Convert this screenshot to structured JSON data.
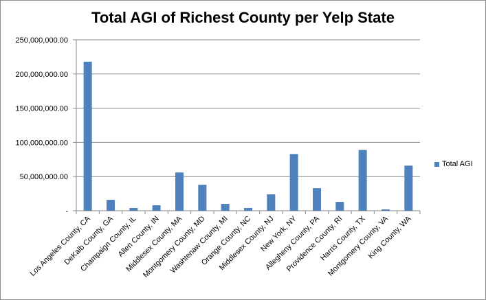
{
  "chart_data": {
    "type": "bar",
    "title": "Total AGI of Richest County per Yelp State",
    "xlabel": "",
    "ylabel": "",
    "ylim": [
      0,
      250000000
    ],
    "yticks": [
      {
        "value": 0,
        "label": "-"
      },
      {
        "value": 50000000,
        "label": "50,000,000.00"
      },
      {
        "value": 100000000,
        "label": "100,000,000.00"
      },
      {
        "value": 150000000,
        "label": "150,000,000.00"
      },
      {
        "value": 200000000,
        "label": "200,000,000.00"
      },
      {
        "value": 250000000,
        "label": "250,000,000.00"
      }
    ],
    "grid": true,
    "legend_position": "right",
    "categories": [
      "Los Angeles County, CA",
      "DeKalb County, GA",
      "Champaign County, IL",
      "Allen County, IN",
      "Middlesex County, MA",
      "Montgomery County, MD",
      "Washtenaw County, MI",
      "Orange County, NC",
      "Middlesex County, NJ",
      "New York, NY",
      "Allegheny County, PA",
      "Providence County, RI",
      "Harris County, TX",
      "Montgomery County, VA",
      "King County, WA"
    ],
    "series": [
      {
        "name": "Total AGI",
        "color": "#4f81bd",
        "values": [
          218000000,
          16000000,
          4000000,
          8000000,
          56000000,
          38000000,
          10000000,
          4000000,
          24000000,
          83000000,
          33000000,
          13000000,
          89000000,
          2000000,
          66000000
        ]
      }
    ]
  }
}
